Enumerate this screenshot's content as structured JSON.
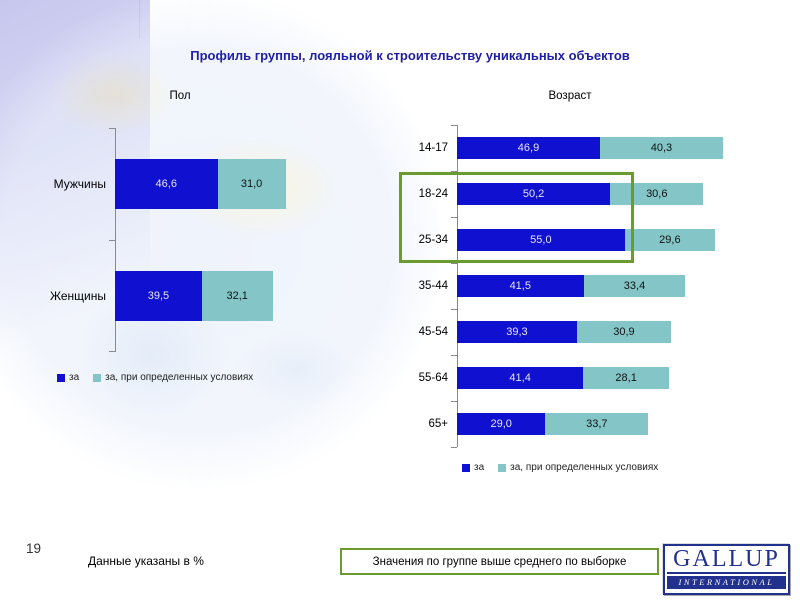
{
  "slide": {
    "page_number": "19",
    "title": "Профиль группы, лояльной к строительству уникальных объектов",
    "footnote": "Данные указаны в %",
    "highlight_note": "Значения по группе выше среднего по выборке",
    "logo": {
      "name": "GALLUP",
      "sub": "INTERNATIONAL"
    }
  },
  "colors": {
    "bar_main": "#1010d0",
    "bar_cond": "#84c6c8",
    "title_text": "#1f1fa6",
    "highlight_border": "#6b9a30",
    "axis": "#8a8a8a"
  },
  "legend": {
    "items": [
      {
        "label": "за",
        "color": "#1010d0"
      },
      {
        "label": "за, при определенных условиях",
        "color": "#84c6c8"
      }
    ]
  },
  "chart_data": [
    {
      "type": "bar",
      "orientation": "horizontal",
      "stacked": true,
      "title": "Пол",
      "categories": [
        "Мужчины",
        "Женщины"
      ],
      "series": [
        {
          "name": "за",
          "values": [
            46.6,
            39.5
          ]
        },
        {
          "name": "за, при определенных условиях",
          "values": [
            31.0,
            32.1
          ]
        }
      ],
      "value_label_format": "comma-decimal",
      "unit": "%",
      "value_axis_visible": false
    },
    {
      "type": "bar",
      "orientation": "horizontal",
      "stacked": true,
      "title": "Возраст",
      "categories": [
        "14-17",
        "18-24",
        "25-34",
        "35-44",
        "45-54",
        "55-64",
        "65+"
      ],
      "series": [
        {
          "name": "за",
          "values": [
            46.9,
            50.2,
            55.0,
            41.5,
            39.3,
            41.4,
            29.0
          ]
        },
        {
          "name": "за, при определенных условиях",
          "values": [
            40.3,
            30.6,
            29.6,
            33.4,
            30.9,
            28.1,
            33.7
          ]
        }
      ],
      "highlighted_categories": [
        "18-24",
        "25-34"
      ],
      "value_label_format": "comma-decimal",
      "unit": "%",
      "value_axis_visible": false
    }
  ]
}
